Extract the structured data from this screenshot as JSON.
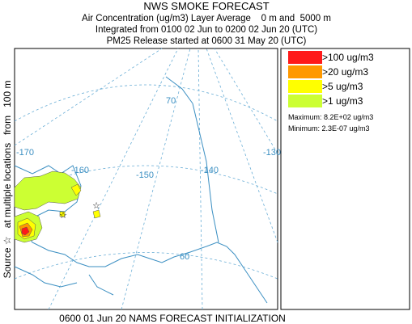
{
  "header": {
    "title": "NWS SMOKE FORECAST",
    "lines": [
      "Air Concentration (ug/m3) Layer Average    0 m and  5000 m",
      "Integrated from 0100 02 Jun to 0200 02 Jun 20 (UTC)",
      "PM25 Release started at 0600 31 May 20 (UTC)"
    ]
  },
  "legend": {
    "items": [
      {
        "label": ">100 ug/m3",
        "color": "#ff1a1a"
      },
      {
        "label": ">20 ug/m3",
        "color": "#ff9900"
      },
      {
        "label": ">5 ug/m3",
        "color": "#ffff00"
      },
      {
        "label": ">1 ug/m3",
        "color": "#ccff33"
      }
    ],
    "stats": [
      "Maximum: 8.2E+02 ug/m3",
      "Minimum: 2.3E-07 ug/m3"
    ]
  },
  "side_label": "Source ☆   at multiple locations   from   100 m",
  "footer": "0600 01 Jun 20 NAMS FORECAST INITIALIZATION",
  "map": {
    "grid_labels": [
      "-170",
      "-160",
      "-150",
      "-140",
      "-130",
      "70",
      "60"
    ]
  }
}
